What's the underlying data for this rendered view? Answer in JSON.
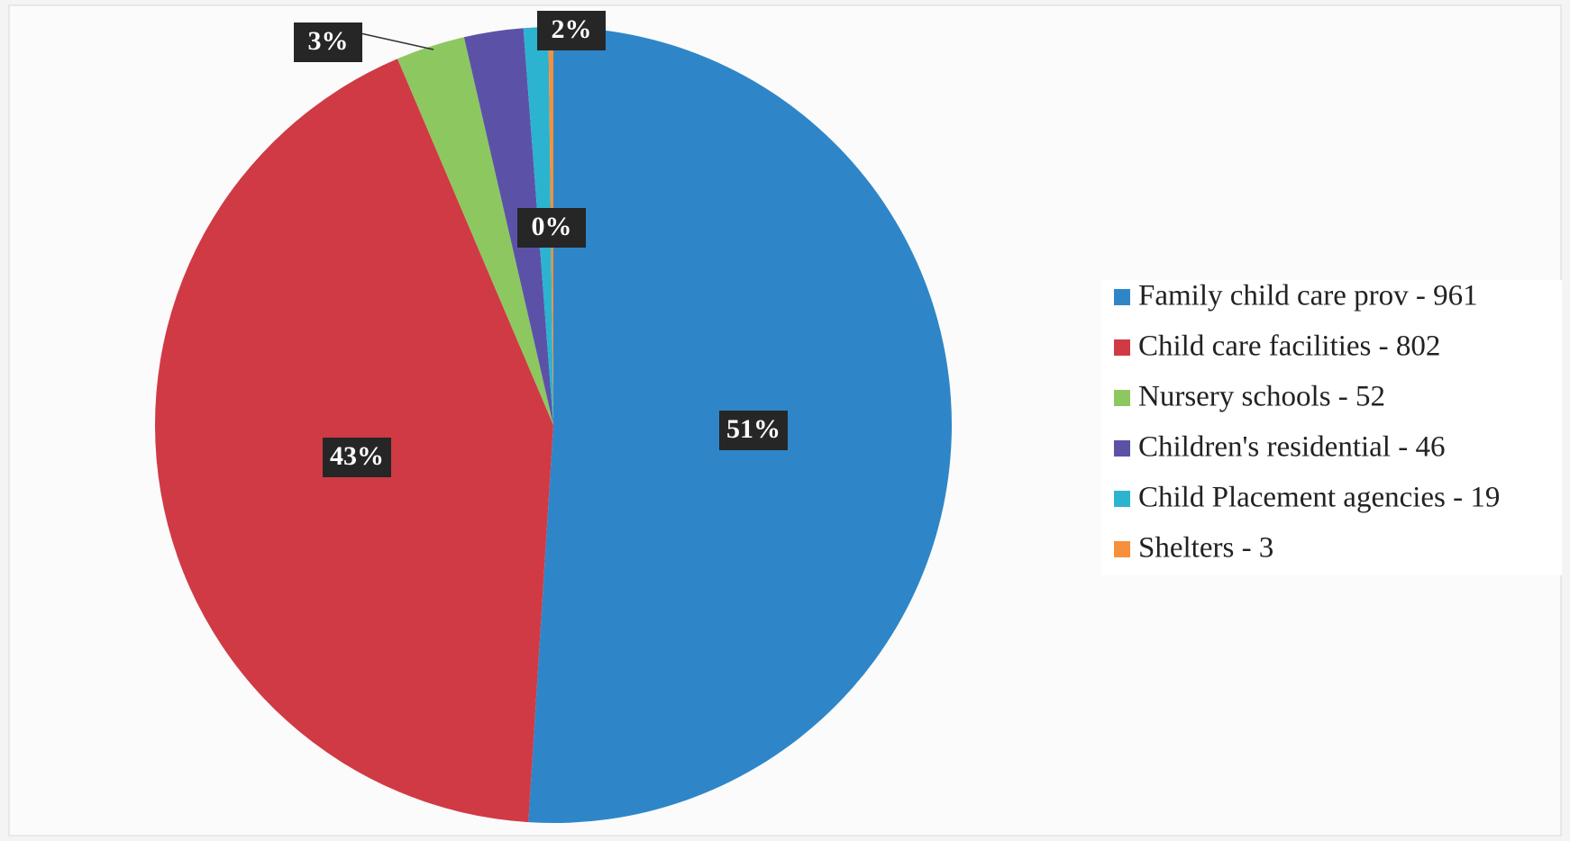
{
  "chart_data": {
    "type": "pie",
    "categories": [
      "Family child care prov - 961",
      "Child care facilities - 802",
      "Nursery schools - 52",
      "Children's residential - 46",
      "Child Placement agencies - 19",
      "Shelters - 3"
    ],
    "values": [
      51.0,
      42.6,
      2.8,
      2.4,
      1.0,
      0.2
    ],
    "value_labels": [
      "51%",
      "43%",
      "3%",
      "2%",
      null,
      "0%"
    ],
    "colors": [
      "#2e86c8",
      "#d03a45",
      "#8dc760",
      "#5b52a8",
      "#2cb3d0",
      "#f7903a"
    ],
    "legend": "right"
  }
}
